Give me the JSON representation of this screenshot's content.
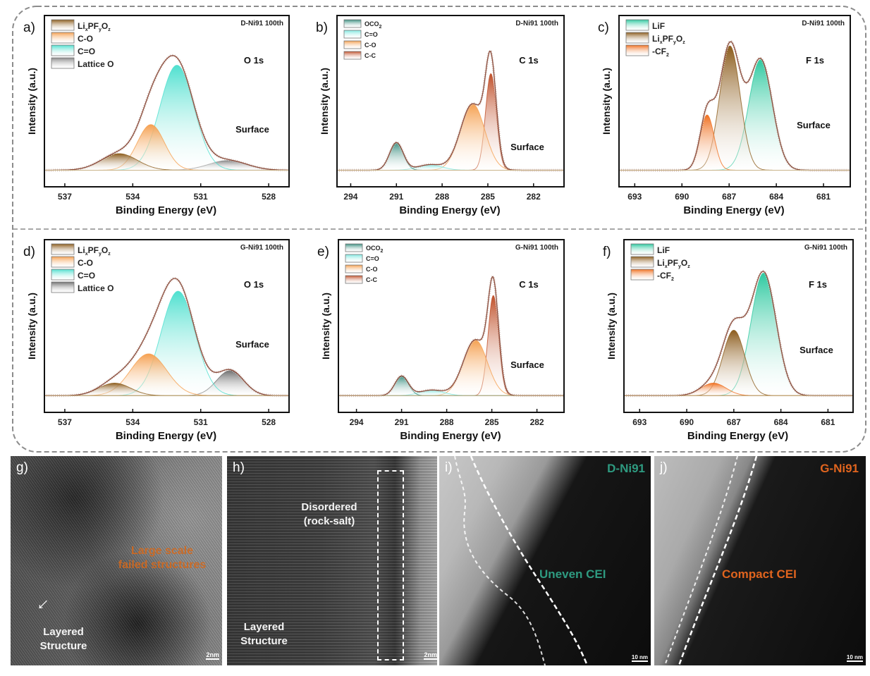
{
  "chart_data": [
    {
      "type": "area",
      "panel": "a)",
      "sample": "D-Ni91 100th",
      "core_level": "O 1s",
      "region": "Surface",
      "xlabel": "Binding Energy (eV)",
      "ylabel": "Intensity (a.u.)",
      "xlim": [
        537.9,
        527.1
      ],
      "x_reversed": true,
      "xticks": [
        537,
        534,
        531,
        528
      ],
      "series": [
        {
          "name": "Lattice O",
          "color": "#8a8a8a",
          "center": 529.8,
          "height": 0.07,
          "sigma": 0.85
        },
        {
          "name": "C=O",
          "color": "#4fe0cf",
          "center": 532.05,
          "height": 0.76,
          "sigma": 0.75
        },
        {
          "name": "C-O",
          "color": "#f5a050",
          "center": 533.2,
          "height": 0.33,
          "sigma": 0.6
        },
        {
          "name": "LixPFyOz",
          "color": "#8c5c1c",
          "center": 534.6,
          "height": 0.12,
          "sigma": 0.8
        }
      ]
    },
    {
      "type": "area",
      "panel": "b)",
      "sample": "D-Ni91 100th",
      "core_level": "C 1s",
      "region": "Surface",
      "xlabel": "Binding Energy (eV)",
      "ylabel": "Intensity (a.u.)",
      "xlim": [
        294.9,
        280
      ],
      "x_reversed": true,
      "xticks": [
        294,
        291,
        288,
        285,
        282
      ],
      "series": [
        {
          "name": "C-C",
          "color": "#c0502a",
          "center": 284.8,
          "height": 0.7,
          "sigma": 0.35
        },
        {
          "name": "C-O",
          "color": "#f5a050",
          "center": 286.0,
          "height": 0.48,
          "sigma": 0.8
        },
        {
          "name": "C=O",
          "color": "#7fe8e0",
          "center": 288.8,
          "height": 0.04,
          "sigma": 0.8
        },
        {
          "name": "OCO2",
          "color": "#3a8f80",
          "center": 291.0,
          "height": 0.2,
          "sigma": 0.45
        }
      ]
    },
    {
      "type": "area",
      "panel": "c)",
      "sample": "D-Ni91 100th",
      "core_level": "F 1s",
      "region": "Surface",
      "xlabel": "Binding Energy (eV)",
      "ylabel": "Intensity (a.u.)",
      "xlim": [
        694,
        679.3
      ],
      "x_reversed": true,
      "xticks": [
        693,
        690,
        687,
        684,
        681
      ],
      "series": [
        {
          "name": "LiF",
          "color": "#2ec9a0",
          "center": 685.0,
          "height": 0.8,
          "sigma": 0.75
        },
        {
          "name": "LixPFyOz",
          "color": "#8c5c1c",
          "center": 686.95,
          "height": 0.9,
          "sigma": 0.65
        },
        {
          "name": "-CF2",
          "color": "#f07020",
          "center": 688.4,
          "height": 0.4,
          "sigma": 0.45
        }
      ]
    },
    {
      "type": "area",
      "panel": "d)",
      "sample": "G-Ni91 100th",
      "core_level": "O 1s",
      "region": "Surface",
      "xlabel": "Binding Energy (eV)",
      "ylabel": "Intensity (a.u.)",
      "xlim": [
        537.9,
        527.1
      ],
      "x_reversed": true,
      "xticks": [
        537,
        534,
        531,
        528
      ],
      "series": [
        {
          "name": "Lattice O",
          "color": "#6f6f6f",
          "center": 529.7,
          "height": 0.18,
          "sigma": 0.6
        },
        {
          "name": "C=O",
          "color": "#4fe0cf",
          "center": 532.0,
          "height": 0.75,
          "sigma": 0.75
        },
        {
          "name": "C-O",
          "color": "#f5a050",
          "center": 533.3,
          "height": 0.3,
          "sigma": 0.8
        },
        {
          "name": "LixPFyOz",
          "color": "#8c5c1c",
          "center": 534.8,
          "height": 0.09,
          "sigma": 0.7
        }
      ]
    },
    {
      "type": "area",
      "panel": "e)",
      "sample": "G-Ni91 100th",
      "core_level": "C 1s",
      "region": "Surface",
      "xlabel": "Binding Energy (eV)",
      "ylabel": "Intensity (a.u.)",
      "xlim": [
        295.2,
        280.2
      ],
      "x_reversed": true,
      "xticks": [
        294,
        291,
        288,
        285,
        282
      ],
      "series": [
        {
          "name": "C-C",
          "color": "#c0502a",
          "center": 284.9,
          "height": 0.72,
          "sigma": 0.35
        },
        {
          "name": "C-O",
          "color": "#f5a050",
          "center": 286.1,
          "height": 0.4,
          "sigma": 0.8
        },
        {
          "name": "C=O",
          "color": "#7fe8e0",
          "center": 289.0,
          "height": 0.04,
          "sigma": 0.8
        },
        {
          "name": "OCO2",
          "color": "#3a8f80",
          "center": 291.0,
          "height": 0.14,
          "sigma": 0.45
        }
      ]
    },
    {
      "type": "area",
      "panel": "f)",
      "sample": "G-Ni91 100th",
      "core_level": "F 1s",
      "region": "Surface",
      "xlabel": "Binding Energy (eV)",
      "ylabel": "Intensity (a.u.)",
      "xlim": [
        694,
        679.4
      ],
      "x_reversed": true,
      "xticks": [
        693,
        690,
        687,
        684,
        681
      ],
      "series": [
        {
          "name": "LiF",
          "color": "#2ec9a0",
          "center": 685.1,
          "height": 0.88,
          "sigma": 0.8
        },
        {
          "name": "LixPFyOz",
          "color": "#8c5c1c",
          "center": 687.0,
          "height": 0.47,
          "sigma": 0.7
        },
        {
          "name": "-CF2",
          "color": "#f07020",
          "center": 688.3,
          "height": 0.09,
          "sigma": 0.8
        }
      ]
    }
  ],
  "images": {
    "g": {
      "panel": "g)",
      "annotation": "Large scale failed structures",
      "label": "Layered Structure",
      "scale": "2nm"
    },
    "h": {
      "panel": "h)",
      "annotation": "Disordered (rock-salt)",
      "label": "Layered Structure",
      "scale": "2nm"
    },
    "i": {
      "panel": "i)",
      "sample": "D-Ni91",
      "annotation": "Uneven CEI",
      "scale": "10 nm",
      "sample_color": "#2e9a80"
    },
    "j": {
      "panel": "j)",
      "sample": "G-Ni91",
      "annotation": "Compact CEI",
      "scale": "10 nm",
      "sample_color": "#e0641e"
    }
  }
}
